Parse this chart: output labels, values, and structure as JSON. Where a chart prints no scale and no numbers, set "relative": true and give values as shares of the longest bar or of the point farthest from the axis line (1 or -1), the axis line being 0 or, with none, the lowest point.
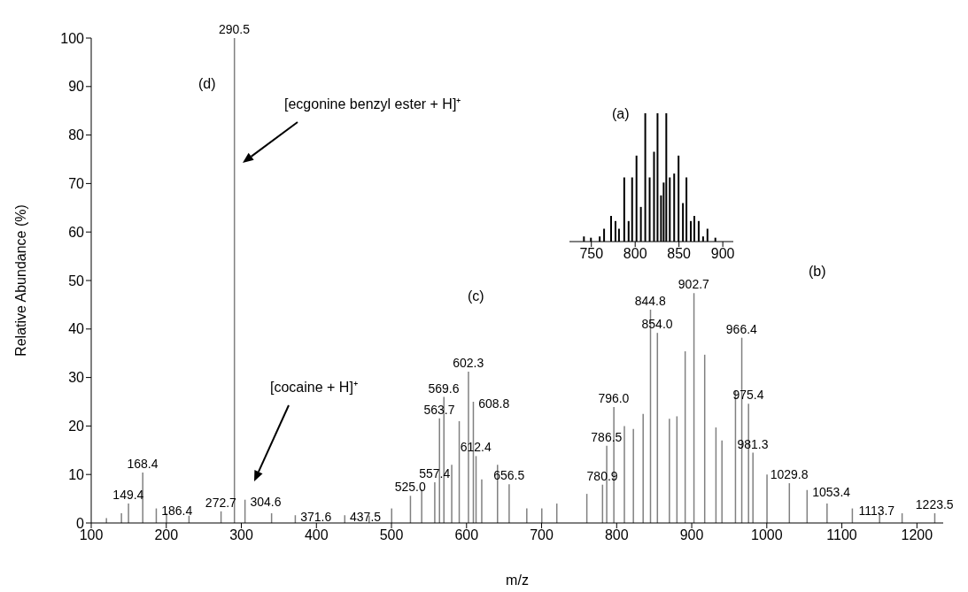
{
  "chart_data": [
    {
      "type": "bar",
      "xlabel": "m/z",
      "ylabel": "Relative Abundance (%)",
      "color": "#808080",
      "x": [
        120,
        140,
        149.4,
        168.4,
        186.4,
        200,
        230,
        272.7,
        290.5,
        304.6,
        340,
        371.6,
        437.5,
        470,
        500,
        525.0,
        540,
        557.4,
        563.7,
        569.6,
        580,
        590,
        602.3,
        608.8,
        612.4,
        620,
        641,
        656.5,
        680,
        700,
        720,
        760,
        780.9,
        786.5,
        796.0,
        810,
        822,
        835,
        844.8,
        854.0,
        870,
        880,
        891,
        902.7,
        917,
        932,
        940,
        958,
        966.4,
        975.4,
        981.3,
        1000,
        1029.8,
        1053.4,
        1080,
        1113.7,
        1150,
        1180,
        1223.5
      ],
      "values": [
        1,
        2,
        4,
        10.4,
        3,
        2,
        1.5,
        2.4,
        100,
        4.8,
        2,
        1.6,
        1.6,
        1.5,
        3,
        5.6,
        7,
        8.4,
        21.6,
        26,
        12,
        21,
        31.2,
        25,
        13.8,
        9,
        12,
        8,
        3,
        3,
        4,
        6,
        7.9,
        15.9,
        23.9,
        20,
        19.4,
        22.5,
        44,
        39.2,
        21.5,
        22,
        35.4,
        47.4,
        34.7,
        19.7,
        17,
        27.4,
        38.2,
        24.6,
        14.5,
        10,
        8.2,
        6.8,
        4,
        3,
        2,
        2,
        2
      ],
      "xlim": [
        100,
        1235
      ],
      "xticks": [
        100,
        200,
        300,
        400,
        500,
        600,
        700,
        800,
        900,
        1000,
        1100,
        1200
      ],
      "ylim": [
        0,
        100
      ],
      "yticks": [
        0,
        10,
        20,
        30,
        40,
        50,
        60,
        70,
        80,
        90,
        100
      ],
      "annotations": [
        "(a)",
        "(b)",
        "(c)",
        "(d)",
        "[ecgonine benzyl ester + H]⁺",
        "[cocaine + H]⁺",
        {
          "text": "149.4",
          "x": 149.4,
          "y": 4
        },
        {
          "text": "168.4",
          "x": 168.4,
          "y": 10.4
        },
        {
          "text": "186.4",
          "x": 186.4,
          "y": 3
        },
        {
          "text": "272.7",
          "x": 272.7,
          "y": 2.4
        },
        {
          "text": "290.5",
          "x": 290.5,
          "y": 100
        },
        {
          "text": "304.6",
          "x": 304.6,
          "y": 4.8
        },
        {
          "text": "371.6",
          "x": 371.6,
          "y": 1.6
        },
        {
          "text": "437.5",
          "x": 437.5,
          "y": 1.6
        },
        {
          "text": "525.0",
          "x": 525.0,
          "y": 5.6
        },
        {
          "text": "557.4",
          "x": 557.4,
          "y": 8.4
        },
        {
          "text": "563.7",
          "x": 563.7,
          "y": 21.6
        },
        {
          "text": "569.6",
          "x": 569.6,
          "y": 26
        },
        {
          "text": "602.3",
          "x": 602.3,
          "y": 31.2
        },
        {
          "text": "608.8",
          "x": 608.8,
          "y": 25
        },
        {
          "text": "612.4",
          "x": 612.4,
          "y": 13.8
        },
        {
          "text": "656.5",
          "x": 656.5,
          "y": 8
        },
        {
          "text": "780.9",
          "x": 780.9,
          "y": 7.9
        },
        {
          "text": "786.5",
          "x": 786.5,
          "y": 15.9
        },
        {
          "text": "796.0",
          "x": 796.0,
          "y": 23.9
        },
        {
          "text": "844.8",
          "x": 844.8,
          "y": 44
        },
        {
          "text": "854.0",
          "x": 854.0,
          "y": 39.2
        },
        {
          "text": "902.7",
          "x": 902.7,
          "y": 47.4
        },
        {
          "text": "966.4",
          "x": 966.4,
          "y": 38.2
        },
        {
          "text": "975.4",
          "x": 975.4,
          "y": 24.6
        },
        {
          "text": "981.3",
          "x": 981.3,
          "y": 14.5
        },
        {
          "text": "1029.8",
          "x": 1029.8,
          "y": 8.2
        },
        {
          "text": "1053.4",
          "x": 1053.4,
          "y": 6.8
        },
        {
          "text": "1113.7",
          "x": 1113.7,
          "y": 3
        },
        {
          "text": "1223.5",
          "x": 1223.5,
          "y": 2
        }
      ]
    },
    {
      "type": "bar",
      "relative": true,
      "tick_labels": "x",
      "color": "#000000",
      "x": [
        742,
        750,
        760,
        765,
        773,
        778,
        782,
        788,
        793,
        797,
        802,
        807,
        812,
        817,
        822,
        826,
        830,
        833,
        836,
        840,
        845,
        850,
        855,
        859,
        864,
        868,
        873,
        878,
        883,
        892
      ],
      "values": [
        0.04,
        0.03,
        0.04,
        0.1,
        0.2,
        0.16,
        0.1,
        0.5,
        0.16,
        0.5,
        0.67,
        0.27,
        1,
        0.5,
        0.7,
        1,
        0.36,
        0.46,
        1,
        0.5,
        0.53,
        0.67,
        0.3,
        0.5,
        0.16,
        0.2,
        0.16,
        0.04,
        0.1,
        0.03
      ],
      "xlim": [
        725,
        912
      ],
      "xticks": [
        750,
        800,
        850,
        900
      ]
    }
  ]
}
